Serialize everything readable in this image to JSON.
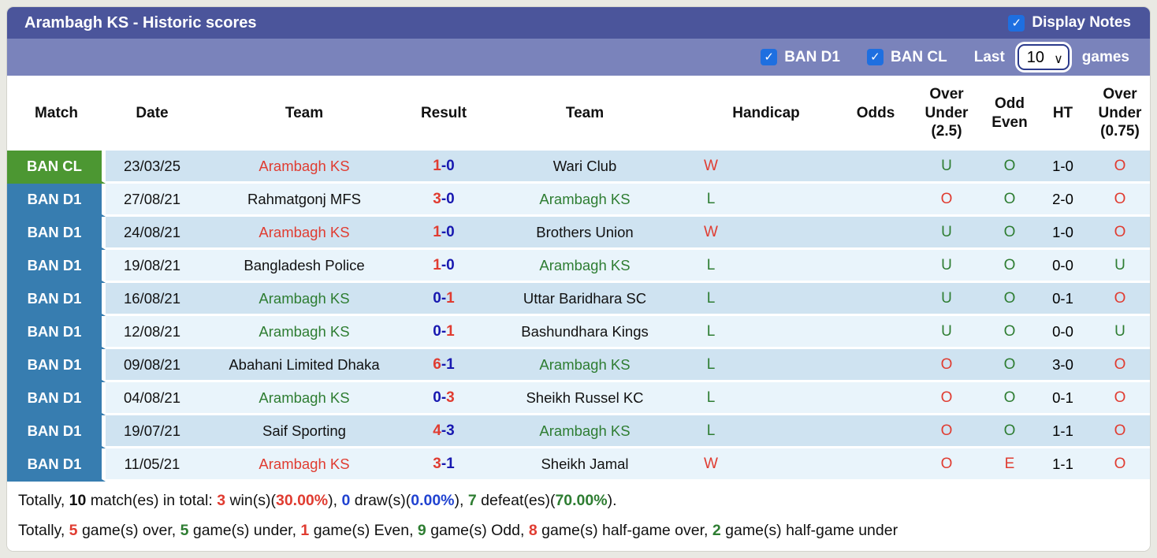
{
  "header": {
    "title": "Arambagh KS - Historic scores",
    "display_notes_label": "Display Notes",
    "display_notes_checked": true
  },
  "filters": {
    "league1_label": "BAN D1",
    "league1_checked": true,
    "league2_label": "BAN CL",
    "league2_checked": true,
    "last_label": "Last",
    "games_count": "10",
    "games_label": "games"
  },
  "icons": {
    "check": "✓",
    "chevron_down": "∨"
  },
  "table": {
    "columns": [
      "Match",
      "Date",
      "Team",
      "Result",
      "Team",
      "Handicap",
      "Odds",
      "Over Under (2.5)",
      "Odd Even",
      "HT",
      "Over Under (0.75)"
    ],
    "result_separator": "-",
    "rows": [
      {
        "league": "BAN CL",
        "league_color": "green",
        "date": "23/03/25",
        "team1": "Arambagh KS",
        "team1_color": "red",
        "score1": "1",
        "score1_color": "red",
        "score2": "0",
        "score2_color": "navy",
        "team2": "Wari Club",
        "team2_color": "black",
        "wl": "W",
        "wl_color": "red",
        "handicap": "",
        "odds": "",
        "ou25": "U",
        "ou25_color": "green",
        "oe": "O",
        "oe_color": "green",
        "ht": "1-0",
        "ou075": "O",
        "ou075_color": "red"
      },
      {
        "league": "BAN D1",
        "league_color": "blue",
        "date": "27/08/21",
        "team1": "Rahmatgonj MFS",
        "team1_color": "black",
        "score1": "3",
        "score1_color": "red",
        "score2": "0",
        "score2_color": "navy",
        "team2": "Arambagh KS",
        "team2_color": "green",
        "wl": "L",
        "wl_color": "green",
        "handicap": "",
        "odds": "",
        "ou25": "O",
        "ou25_color": "red",
        "oe": "O",
        "oe_color": "green",
        "ht": "2-0",
        "ou075": "O",
        "ou075_color": "red"
      },
      {
        "league": "BAN D1",
        "league_color": "blue",
        "date": "24/08/21",
        "team1": "Arambagh KS",
        "team1_color": "red",
        "score1": "1",
        "score1_color": "red",
        "score2": "0",
        "score2_color": "navy",
        "team2": "Brothers Union",
        "team2_color": "black",
        "wl": "W",
        "wl_color": "red",
        "handicap": "",
        "odds": "",
        "ou25": "U",
        "ou25_color": "green",
        "oe": "O",
        "oe_color": "green",
        "ht": "1-0",
        "ou075": "O",
        "ou075_color": "red"
      },
      {
        "league": "BAN D1",
        "league_color": "blue",
        "date": "19/08/21",
        "team1": "Bangladesh Police",
        "team1_color": "black",
        "score1": "1",
        "score1_color": "red",
        "score2": "0",
        "score2_color": "navy",
        "team2": "Arambagh KS",
        "team2_color": "green",
        "wl": "L",
        "wl_color": "green",
        "handicap": "",
        "odds": "",
        "ou25": "U",
        "ou25_color": "green",
        "oe": "O",
        "oe_color": "green",
        "ht": "0-0",
        "ou075": "U",
        "ou075_color": "green"
      },
      {
        "league": "BAN D1",
        "league_color": "blue",
        "date": "16/08/21",
        "team1": "Arambagh KS",
        "team1_color": "green",
        "score1": "0",
        "score1_color": "navy",
        "score2": "1",
        "score2_color": "red",
        "team2": "Uttar Baridhara SC",
        "team2_color": "black",
        "wl": "L",
        "wl_color": "green",
        "handicap": "",
        "odds": "",
        "ou25": "U",
        "ou25_color": "green",
        "oe": "O",
        "oe_color": "green",
        "ht": "0-1",
        "ou075": "O",
        "ou075_color": "red"
      },
      {
        "league": "BAN D1",
        "league_color": "blue",
        "date": "12/08/21",
        "team1": "Arambagh KS",
        "team1_color": "green",
        "score1": "0",
        "score1_color": "navy",
        "score2": "1",
        "score2_color": "red",
        "team2": "Bashundhara Kings",
        "team2_color": "black",
        "wl": "L",
        "wl_color": "green",
        "handicap": "",
        "odds": "",
        "ou25": "U",
        "ou25_color": "green",
        "oe": "O",
        "oe_color": "green",
        "ht": "0-0",
        "ou075": "U",
        "ou075_color": "green"
      },
      {
        "league": "BAN D1",
        "league_color": "blue",
        "date": "09/08/21",
        "team1": "Abahani Limited Dhaka",
        "team1_color": "black",
        "score1": "6",
        "score1_color": "red",
        "score2": "1",
        "score2_color": "navy",
        "team2": "Arambagh KS",
        "team2_color": "green",
        "wl": "L",
        "wl_color": "green",
        "handicap": "",
        "odds": "",
        "ou25": "O",
        "ou25_color": "red",
        "oe": "O",
        "oe_color": "green",
        "ht": "3-0",
        "ou075": "O",
        "ou075_color": "red"
      },
      {
        "league": "BAN D1",
        "league_color": "blue",
        "date": "04/08/21",
        "team1": "Arambagh KS",
        "team1_color": "green",
        "score1": "0",
        "score1_color": "navy",
        "score2": "3",
        "score2_color": "red",
        "team2": "Sheikh Russel KC",
        "team2_color": "black",
        "wl": "L",
        "wl_color": "green",
        "handicap": "",
        "odds": "",
        "ou25": "O",
        "ou25_color": "red",
        "oe": "O",
        "oe_color": "green",
        "ht": "0-1",
        "ou075": "O",
        "ou075_color": "red"
      },
      {
        "league": "BAN D1",
        "league_color": "blue",
        "date": "19/07/21",
        "team1": "Saif Sporting",
        "team1_color": "black",
        "score1": "4",
        "score1_color": "red",
        "score2": "3",
        "score2_color": "navy",
        "team2": "Arambagh KS",
        "team2_color": "green",
        "wl": "L",
        "wl_color": "green",
        "handicap": "",
        "odds": "",
        "ou25": "O",
        "ou25_color": "red",
        "oe": "O",
        "oe_color": "green",
        "ht": "1-1",
        "ou075": "O",
        "ou075_color": "red"
      },
      {
        "league": "BAN D1",
        "league_color": "blue",
        "date": "11/05/21",
        "team1": "Arambagh KS",
        "team1_color": "red",
        "score1": "3",
        "score1_color": "red",
        "score2": "1",
        "score2_color": "navy",
        "team2": "Sheikh Jamal",
        "team2_color": "black",
        "wl": "W",
        "wl_color": "red",
        "handicap": "",
        "odds": "",
        "ou25": "O",
        "ou25_color": "red",
        "oe": "E",
        "oe_color": "red",
        "ht": "1-1",
        "ou075": "O",
        "ou075_color": "red"
      }
    ]
  },
  "summary": {
    "line1": [
      {
        "t": "Totally, ",
        "c": "black"
      },
      {
        "t": "10",
        "c": "black",
        "b": true
      },
      {
        "t": " match(es) in total: ",
        "c": "black"
      },
      {
        "t": "3",
        "c": "red",
        "b": true
      },
      {
        "t": " win(s)(",
        "c": "black"
      },
      {
        "t": "30.00%",
        "c": "red",
        "b": true
      },
      {
        "t": "), ",
        "c": "black"
      },
      {
        "t": "0",
        "c": "blue",
        "b": true
      },
      {
        "t": " draw(s)(",
        "c": "black"
      },
      {
        "t": "0.00%",
        "c": "blue",
        "b": true
      },
      {
        "t": "), ",
        "c": "black"
      },
      {
        "t": "7",
        "c": "green",
        "b": true
      },
      {
        "t": " defeat(es)(",
        "c": "black"
      },
      {
        "t": "70.00%",
        "c": "green",
        "b": true
      },
      {
        "t": ").",
        "c": "black"
      }
    ],
    "line2": [
      {
        "t": "Totally, ",
        "c": "black"
      },
      {
        "t": "5",
        "c": "red",
        "b": true
      },
      {
        "t": " game(s) over, ",
        "c": "black"
      },
      {
        "t": "5",
        "c": "green",
        "b": true
      },
      {
        "t": " game(s) under, ",
        "c": "black"
      },
      {
        "t": "1",
        "c": "red",
        "b": true
      },
      {
        "t": " game(s) Even, ",
        "c": "black"
      },
      {
        "t": "9",
        "c": "green",
        "b": true
      },
      {
        "t": " game(s) Odd, ",
        "c": "black"
      },
      {
        "t": "8",
        "c": "red",
        "b": true
      },
      {
        "t": " game(s) half-game over, ",
        "c": "black"
      },
      {
        "t": "2",
        "c": "green",
        "b": true
      },
      {
        "t": " game(s) half-game under",
        "c": "black"
      }
    ]
  },
  "colors": {
    "titleBar": "#4B559B",
    "filterBar": "#7A83BB",
    "badgeGreen": "#4C9732",
    "badgeBlue": "#377DB0",
    "rowDark": "#CFE3F1",
    "rowLight": "#E9F4FB",
    "red": "#E03C31",
    "green": "#2E7D32",
    "navy": "#1818B0",
    "blue": "#2143D1",
    "checkbox": "#1E6FE0",
    "pageBg": "#E9E9E3",
    "textDark": "#111111"
  }
}
